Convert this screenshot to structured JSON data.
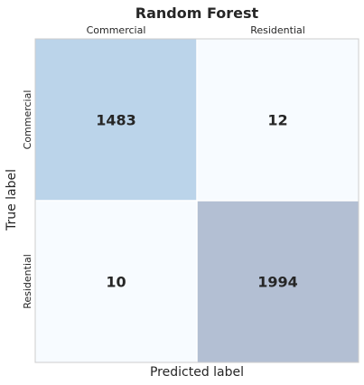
{
  "chart_data": {
    "type": "heatmap",
    "title": "Random Forest",
    "xlabel": "Predicted label",
    "ylabel": "True label",
    "x_categories": [
      "Commercial",
      "Residential"
    ],
    "y_categories": [
      "Commercial",
      "Residential"
    ],
    "values": [
      [
        1483,
        12
      ],
      [
        10,
        1994
      ]
    ],
    "colorscale": "Blues",
    "colors": {
      "low": "#f7fbff",
      "high": "#b3bfd3",
      "commercial_commercial": "#bbd4ea",
      "border": "#cccccc",
      "text": "#262626"
    },
    "x_tick_position": "top",
    "grid": false
  }
}
